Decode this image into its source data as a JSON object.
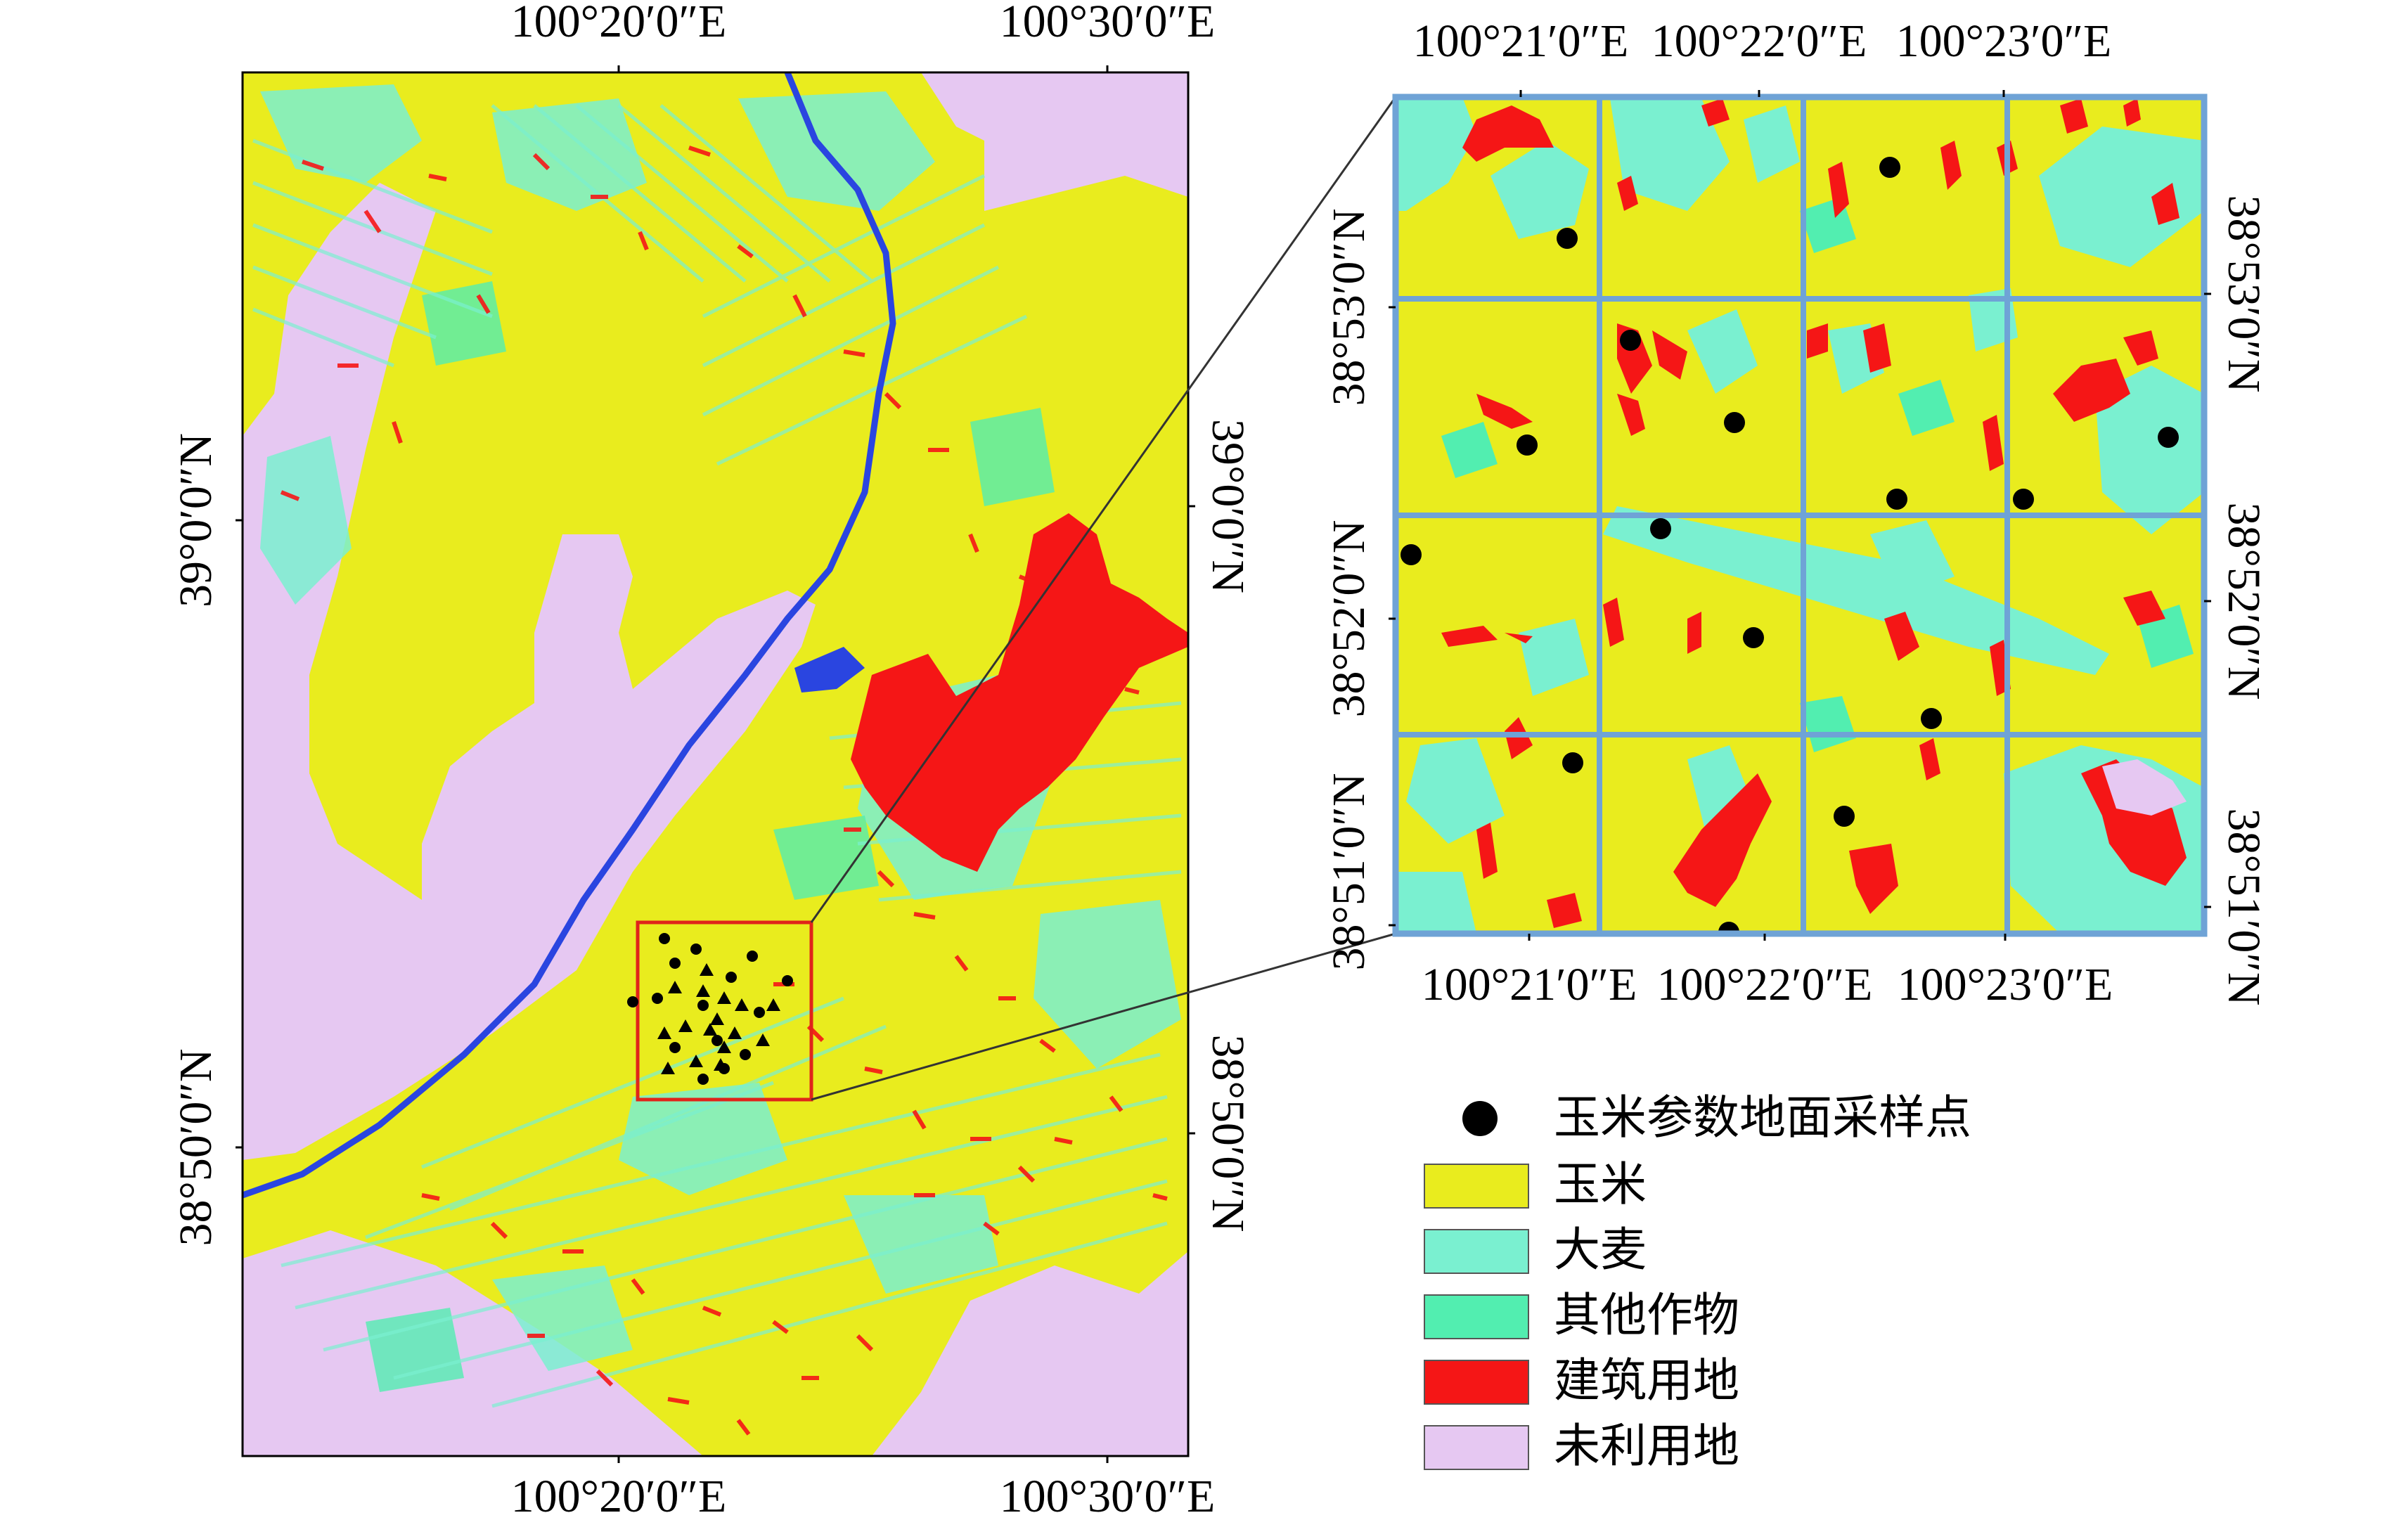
{
  "main_map": {
    "top_lon_labels": [
      "100°20′0″E",
      "100°30′0″E"
    ],
    "bottom_lon_labels": [
      "100°20′0″E",
      "100°30′0″E"
    ],
    "left_lat_labels": [
      "39°0′0″N",
      "38°50′0″N"
    ],
    "right_lat_labels": [
      "39°0′0″N",
      "38°50′0″N"
    ]
  },
  "inset_map": {
    "top_lon_labels": [
      "100°21′0″E",
      "100°22′0″E",
      "100°23′0″E"
    ],
    "bottom_lon_labels": [
      "100°21′0″E",
      "100°22′0″E",
      "100°23′0″E"
    ],
    "left_lat_labels": [
      "38°53′0″N",
      "38°52′0″N",
      "38°51′0″N"
    ],
    "right_lat_labels": [
      "38°53′0″N",
      "38°52′0″N",
      "38°51′0″N"
    ]
  },
  "legend": {
    "items": [
      {
        "label": "玉米参数地面采样点",
        "symbol": "dot",
        "color": "#000000"
      },
      {
        "label": "玉米",
        "symbol": "box",
        "color": "#e9ec1e"
      },
      {
        "label": "大麦",
        "symbol": "box",
        "color": "#7af0d0"
      },
      {
        "label": "其他作物",
        "symbol": "box",
        "color": "#52eeb0"
      },
      {
        "label": "建筑用地",
        "symbol": "box",
        "color": "#f51616"
      },
      {
        "label": "未利用地",
        "symbol": "box",
        "color": "#e6c8f2"
      }
    ]
  },
  "colors": {
    "maize": "#e9ec1e",
    "barley": "#7af0d0",
    "other_crops": "#52eeb0",
    "built_up": "#f51616",
    "unused": "#e6c8f2",
    "water": "#2a45e0",
    "grid": "#6fa3d6",
    "study_box": "#e0241a"
  }
}
